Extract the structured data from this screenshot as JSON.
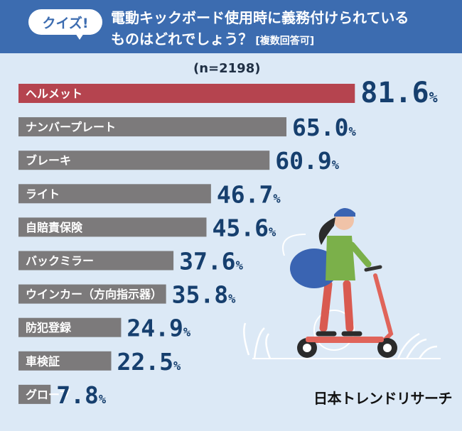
{
  "header": {
    "badge": "クイズ!",
    "question_line1": "電動キックボード使用時に義務付けられている",
    "question_line2": "ものはどれでしょう？",
    "multi_answer": "[複数回答可]"
  },
  "sample_size": "(n=2198)",
  "brand": "日本トレンドリサーチ",
  "colors": {
    "header_bg": "#3c6cb0",
    "background": "#dce9f6",
    "highlight_bar": "#b5444f",
    "bar": "#7c7a7b",
    "value_text": "#163f6e"
  },
  "chart_data": {
    "type": "bar",
    "orientation": "horizontal",
    "unit": "%",
    "categories": [
      "ヘルメット",
      "ナンバープレート",
      "ブレーキ",
      "ライト",
      "自賠責保険",
      "バックミラー",
      "ウインカー（方向指示器）",
      "防犯登録",
      "車検証",
      "グローブ"
    ],
    "values": [
      81.6,
      65.0,
      60.9,
      46.7,
      45.6,
      37.6,
      35.8,
      24.9,
      22.5,
      7.8
    ],
    "value_labels": [
      "81.6",
      "65.0",
      "60.9",
      "46.7",
      "45.6",
      "37.6",
      "35.8",
      "24.9",
      "22.5",
      "7.8"
    ],
    "highlight_index": 0
  }
}
